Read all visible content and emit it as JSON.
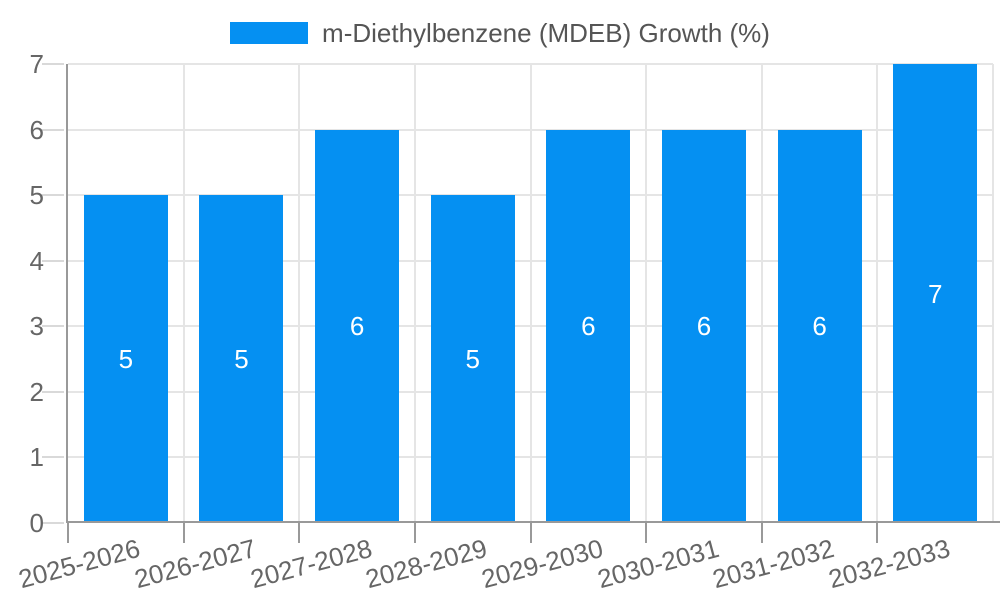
{
  "chart_data": {
    "type": "bar",
    "legend": {
      "position": "top",
      "label": "m-Diethylbenzene (MDEB) Growth (%)"
    },
    "categories": [
      "2025-2026",
      "2026-2027",
      "2027-2028",
      "2028-2029",
      "2029-2030",
      "2030-2031",
      "2031-2032",
      "2032-2033"
    ],
    "values": [
      5,
      5,
      6,
      5,
      6,
      6,
      6,
      7
    ],
    "bar_labels": [
      "5",
      "5",
      "6",
      "5",
      "6",
      "6",
      "6",
      "7"
    ],
    "ylim": [
      0,
      7
    ],
    "yticks": [
      0,
      1,
      2,
      3,
      4,
      5,
      6,
      7
    ],
    "grid": true,
    "value_label_position": "inside-center",
    "colors": {
      "bar": "#0590f2",
      "grid": "#e5e5e5",
      "axis": "#999999",
      "light_tick": "#d9d9d9",
      "tick_text": "#666666",
      "legend_text": "#555555",
      "bar_label": "#ffffff",
      "background": "#ffffff"
    }
  }
}
